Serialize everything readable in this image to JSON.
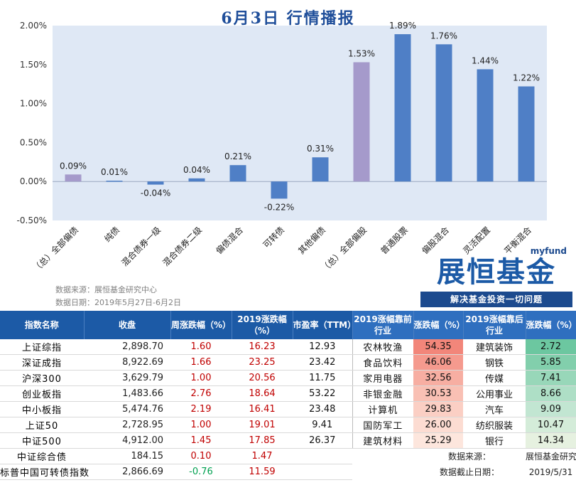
{
  "title": "6月3日  行情播报",
  "chart_data": {
    "type": "bar",
    "categories": [
      "（总）全部偏债",
      "纯债",
      "混合债券一级",
      "混合债券二级",
      "偏债混合",
      "可转债",
      "其他偏债",
      "（总）全部偏股",
      "普通股票",
      "偏股混合",
      "灵活配置",
      "平衡混合"
    ],
    "values": [
      0.09,
      0.01,
      -0.04,
      0.04,
      0.21,
      -0.22,
      0.31,
      1.53,
      1.89,
      1.76,
      1.44,
      1.22
    ],
    "value_labels": [
      "0.09%",
      "0.01%",
      "-0.04%",
      "0.04%",
      "0.21%",
      "-0.22%",
      "0.31%",
      "1.53%",
      "1.89%",
      "1.76%",
      "1.44%",
      "1.22%"
    ],
    "highlight": [
      true,
      false,
      false,
      false,
      false,
      false,
      false,
      true,
      false,
      false,
      false,
      false
    ],
    "yticks": [
      "-0.50%",
      "0.00%",
      "0.50%",
      "1.00%",
      "1.50%",
      "2.00%"
    ],
    "ylim": [
      -0.5,
      2.0
    ],
    "colors": {
      "normal": "#4f7fc6",
      "highlight": "#a59acb",
      "plot_bg": "#dfe8f5"
    }
  },
  "source_note": [
    "数据来源：展恒基金研究中心",
    "数据日期：2019年5月27日-6月2日"
  ],
  "logo": {
    "small": "myfund",
    "big": "展恒基金",
    "slogan": "解决基金投资一切问题"
  },
  "table": {
    "headers": [
      "指数名称",
      "收盘",
      "周涨跌幅（%）",
      "2019涨跌幅（%）",
      "市盈率（TTM）",
      "2019涨幅靠前行业",
      "涨跌幅（%）",
      "2019涨幅靠后行业",
      "涨跌幅（%）"
    ],
    "rows": [
      {
        "name": "上证综指",
        "close": "2,898.70",
        "week": "1.60",
        "ytd": "16.23",
        "pe": "12.93",
        "top_ind": "农林牧渔",
        "top_chg": "54.35",
        "bot_ind": "建筑装饰",
        "bot_chg": "2.72"
      },
      {
        "name": "深证成指",
        "close": "8,922.69",
        "week": "1.66",
        "ytd": "23.25",
        "pe": "23.42",
        "top_ind": "食品饮料",
        "top_chg": "46.06",
        "bot_ind": "钢铁",
        "bot_chg": "5.85"
      },
      {
        "name": "沪深300",
        "close": "3,629.79",
        "week": "1.00",
        "ytd": "20.56",
        "pe": "11.75",
        "top_ind": "家用电器",
        "top_chg": "32.56",
        "bot_ind": "传媒",
        "bot_chg": "7.41"
      },
      {
        "name": "创业板指",
        "close": "1,483.66",
        "week": "2.76",
        "ytd": "18.64",
        "pe": "53.22",
        "top_ind": "非银金融",
        "top_chg": "30.53",
        "bot_ind": "公用事业",
        "bot_chg": "8.66"
      },
      {
        "name": "中小板指",
        "close": "5,474.76",
        "week": "2.19",
        "ytd": "16.41",
        "pe": "23.48",
        "top_ind": "计算机",
        "top_chg": "29.83",
        "bot_ind": "汽车",
        "bot_chg": "9.09"
      },
      {
        "name": "上证50",
        "close": "2,728.95",
        "week": "1.00",
        "ytd": "19.01",
        "pe": "9.41",
        "top_ind": "国防军工",
        "top_chg": "26.00",
        "bot_ind": "纺织服装",
        "bot_chg": "10.47"
      },
      {
        "name": "中证500",
        "close": "4,912.00",
        "week": "1.45",
        "ytd": "17.85",
        "pe": "26.37",
        "top_ind": "建筑材料",
        "top_chg": "25.29",
        "bot_ind": "银行",
        "bot_chg": "14.34"
      },
      {
        "name": "中证综合债",
        "close": "184.15",
        "week": "0.10",
        "ytd": "1.47",
        "pe": ""
      },
      {
        "name": "标普中国可转债指数",
        "close": "2,866.69",
        "week": "-0.76",
        "ytd": "11.59",
        "pe": ""
      }
    ],
    "footer": [
      {
        "label": "数据来源：",
        "value": "展恒基金研究中心"
      },
      {
        "label": "数据截止日期：",
        "value": "2019/5/31"
      }
    ],
    "top_colors": [
      "#f2867a",
      "#f59a8e",
      "#f7aea2",
      "#f9c0b4",
      "#fbcfc4",
      "#fcdcd2",
      "#fde6dd"
    ],
    "bot_colors": [
      "#6cc7a0",
      "#82cfac",
      "#98d7b9",
      "#aedfc6",
      "#c2e6d2",
      "#d4ecd9",
      "#e6f1e0"
    ]
  }
}
